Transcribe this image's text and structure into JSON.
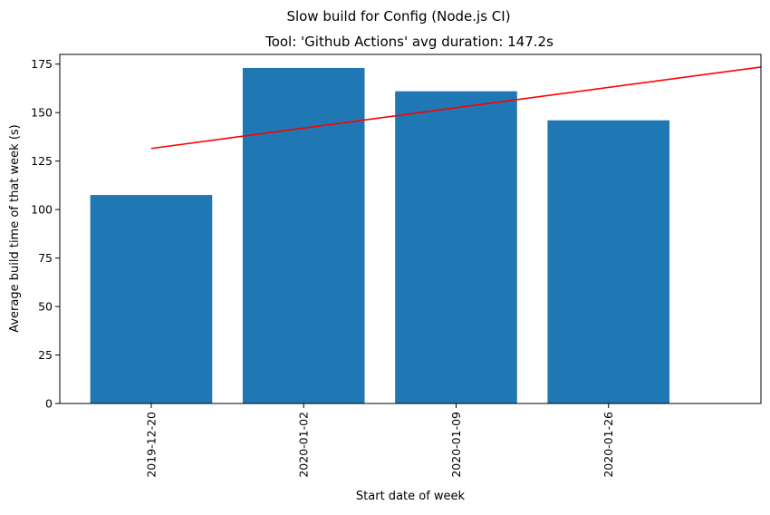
{
  "chart_data": {
    "type": "bar",
    "suptitle": "Slow build for Config (Node.js CI)",
    "title": "Tool: 'Github Actions' avg duration: 147.2s",
    "xlabel": "Start date of week",
    "ylabel": "Average build time of that week (s)",
    "categories": [
      "2019-12-20",
      "2020-01-02",
      "2020-01-09",
      "2020-01-26"
    ],
    "values": [
      107.5,
      173,
      161,
      146
    ],
    "ylim": [
      0,
      180
    ],
    "yticks": [
      0,
      25,
      50,
      75,
      100,
      125,
      150,
      175
    ],
    "xlim": [
      -0.6,
      4.0
    ],
    "trend_line": {
      "x": [
        0,
        4
      ],
      "y": [
        131.5,
        173.5
      ]
    },
    "grid": false,
    "colors": {
      "bar": "#1f77b4",
      "trend": "#ff0000"
    }
  }
}
